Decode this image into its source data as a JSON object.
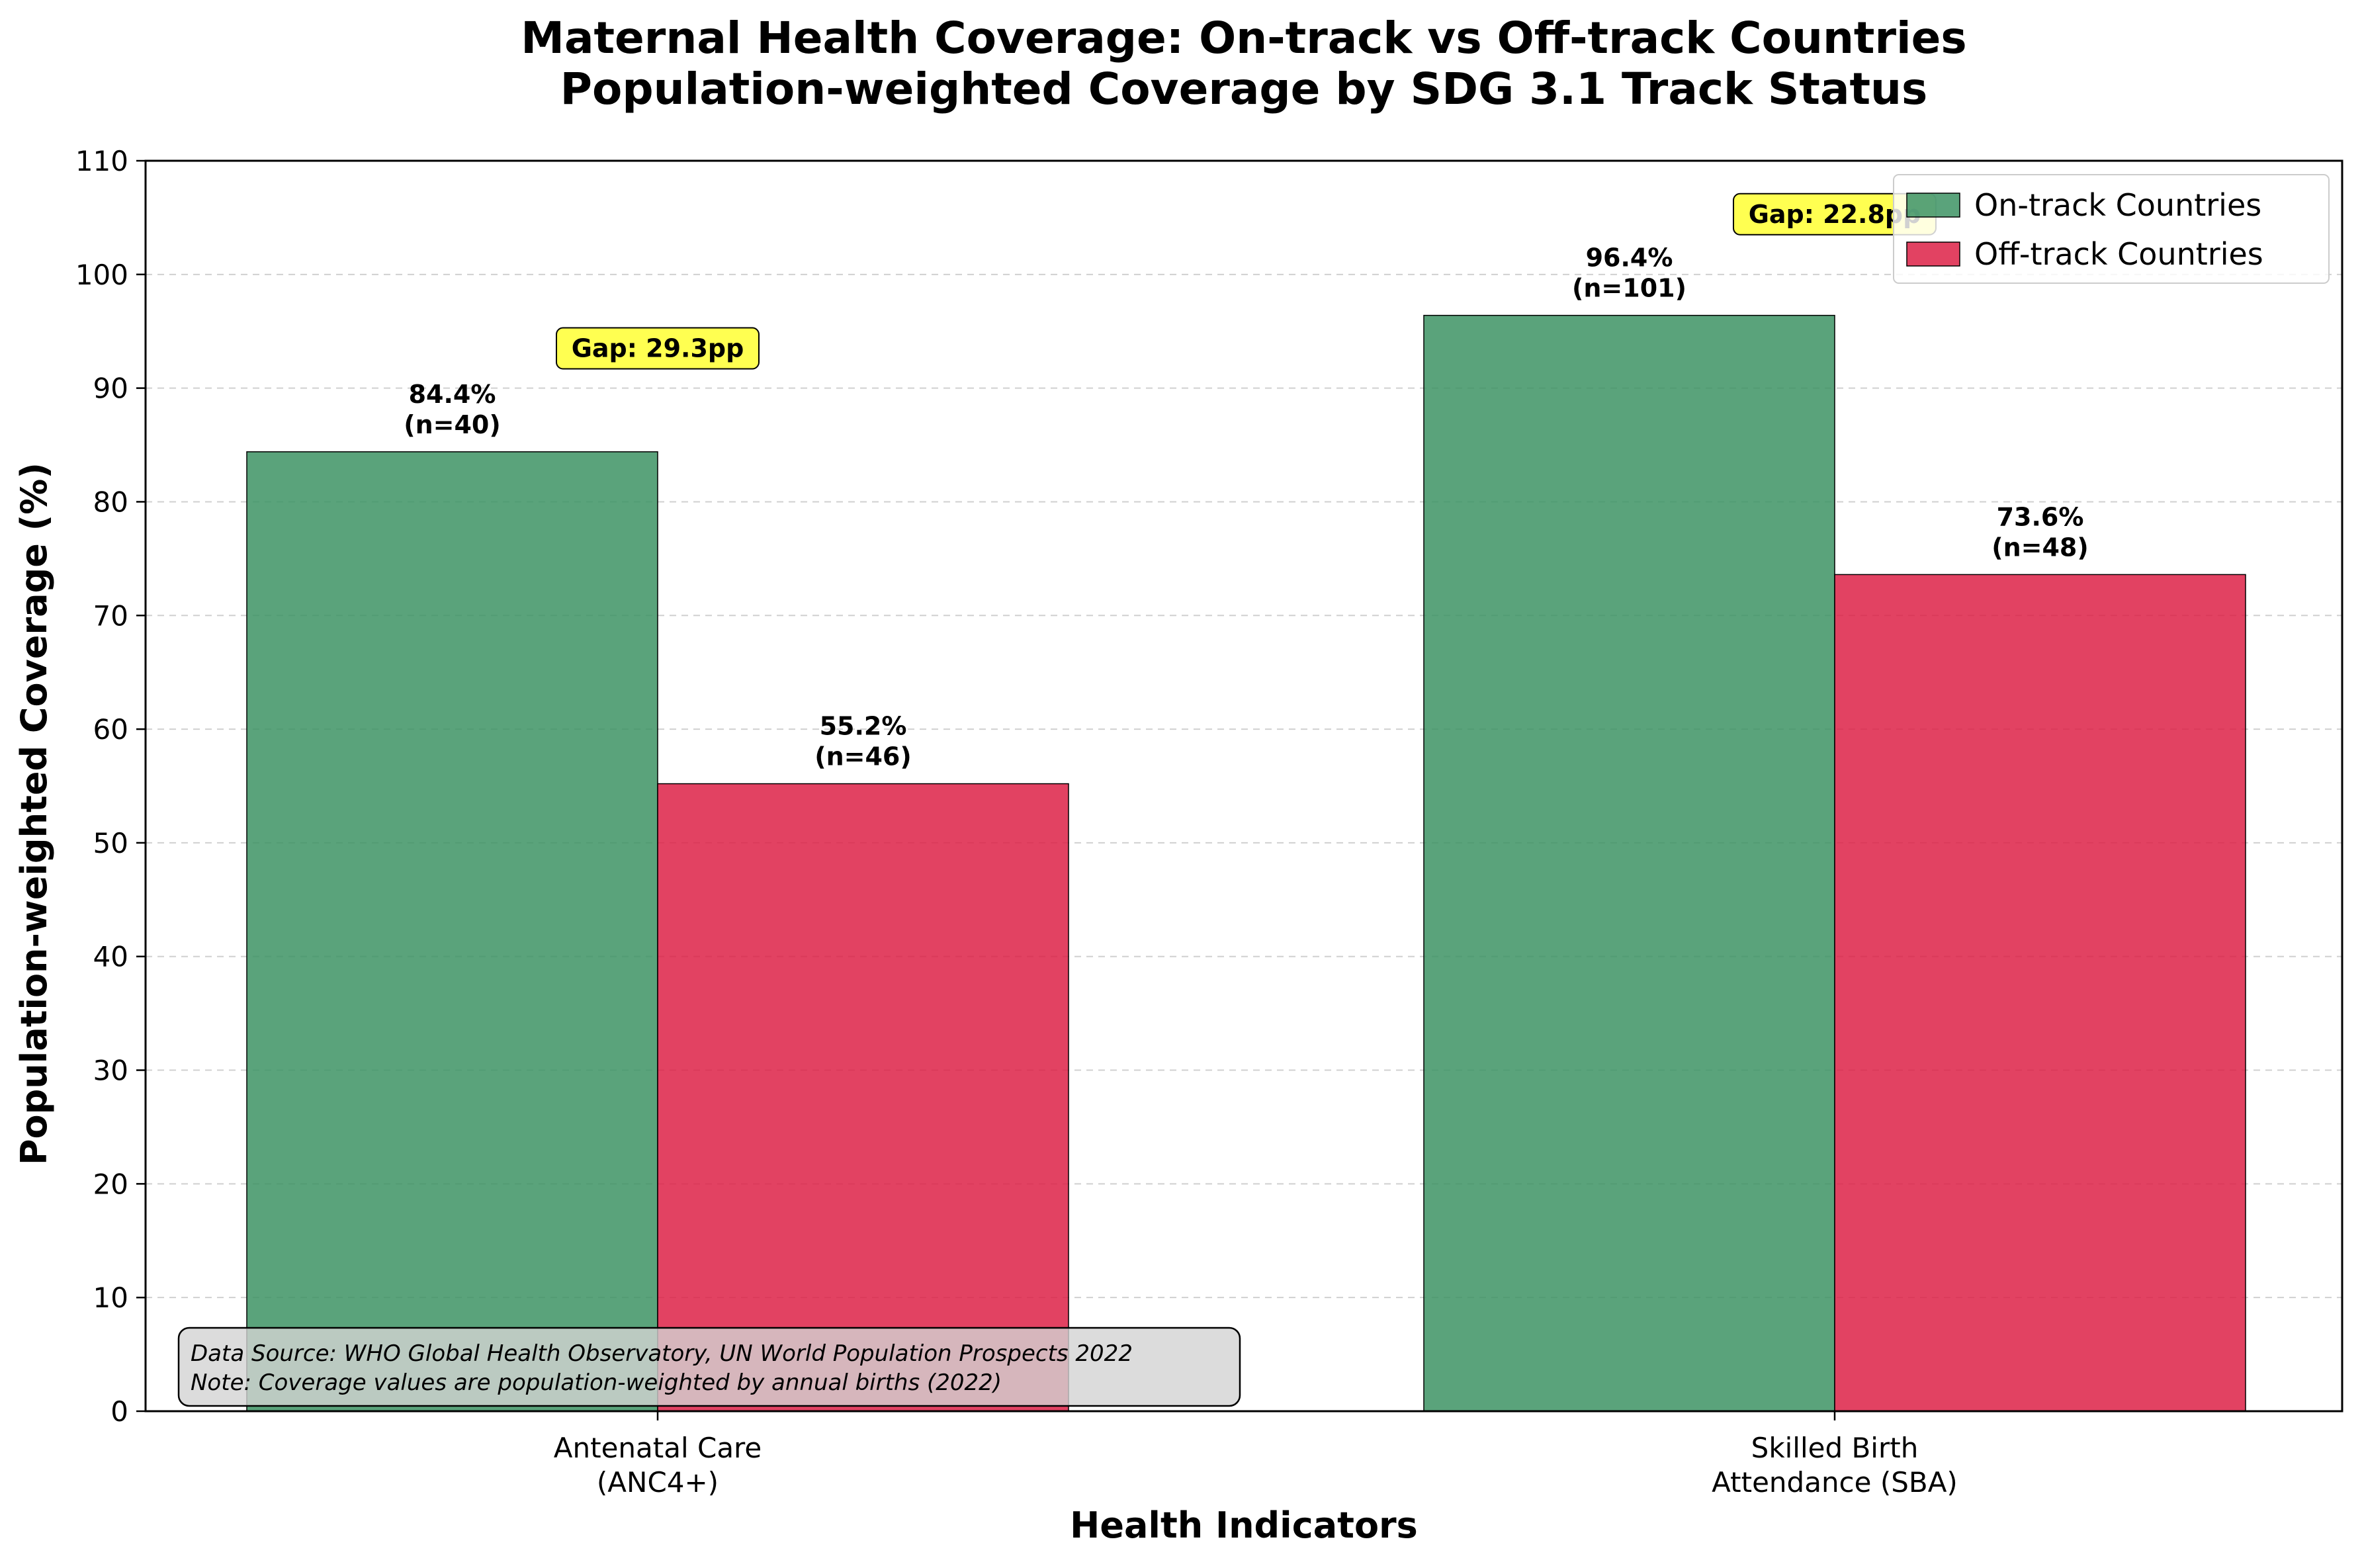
{
  "chart_data": {
    "type": "bar",
    "title": "Maternal Health Coverage: On-track vs Off-track Countries",
    "subtitle": "Population-weighted Coverage by SDG 3.1 Track Status",
    "xlabel": "Health Indicators",
    "ylabel": "Population-weighted Coverage (%)",
    "ylim": [
      0,
      110
    ],
    "yticks": [
      0,
      10,
      20,
      30,
      40,
      50,
      60,
      70,
      80,
      90,
      100,
      110
    ],
    "grid": "y-dashed",
    "legend_position": "top-right",
    "categories": [
      [
        "Antenatal Care",
        "(ANC4+)"
      ],
      [
        "Skilled Birth",
        "Attendance (SBA)"
      ]
    ],
    "series": [
      {
        "name": "On-track Countries",
        "color": "#3a9162",
        "values": [
          84.4,
          96.4
        ],
        "labels": [
          [
            "84.4%",
            "(n=40)"
          ],
          [
            "96.4%",
            "(n=101)"
          ]
        ]
      },
      {
        "name": "Off-track Countries",
        "color": "#dc1e44",
        "values": [
          55.2,
          73.6
        ],
        "labels": [
          [
            "55.2%",
            "(n=46)"
          ],
          [
            "73.6%",
            "(n=48)"
          ]
        ]
      }
    ],
    "gap_annotations": [
      {
        "text": "Gap: 29.3pp",
        "y": 93.5
      },
      {
        "text": "Gap: 22.8pp",
        "y": 105.3
      }
    ],
    "annotation_color": "#ffff33",
    "note_lines": [
      "Data Source: WHO Global Health Observatory, UN World Population Prospects 2022",
      "Note: Coverage values are population-weighted by annual births (2022)"
    ]
  }
}
